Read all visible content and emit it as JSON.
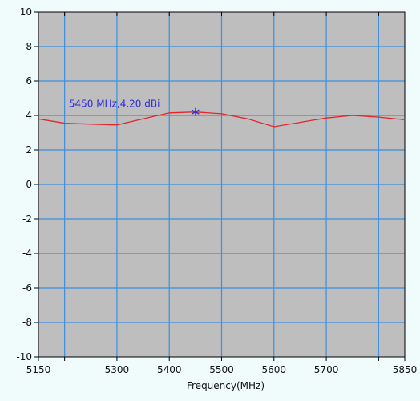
{
  "chart_data": {
    "type": "line",
    "xlabel": "Frequency(MHz)",
    "ylabel": "",
    "xlim": [
      5150,
      5850
    ],
    "ylim": [
      -10,
      10
    ],
    "x_ticks": [
      5150,
      5200,
      5300,
      5400,
      5500,
      5600,
      5700,
      5800,
      5850
    ],
    "x_tick_labels": [
      "5150",
      "",
      "5300",
      "5400",
      "5500",
      "5600",
      "5700",
      "",
      "5850"
    ],
    "y_ticks": [
      -10,
      -8,
      -6,
      -4,
      -2,
      0,
      2,
      4,
      6,
      8,
      10
    ],
    "y_tick_labels": [
      "-10",
      "-8",
      "-6",
      "-4",
      "-2",
      "0",
      "2",
      "4",
      "6",
      "8",
      "10"
    ],
    "grid": true,
    "series": [
      {
        "x": [
          5150,
          5200,
          5250,
          5300,
          5350,
          5400,
          5450,
          5500,
          5550,
          5600,
          5650,
          5700,
          5750,
          5800,
          5850
        ],
        "y": [
          3.8,
          3.55,
          3.5,
          3.45,
          3.8,
          4.15,
          4.2,
          4.1,
          3.8,
          3.35,
          3.6,
          3.85,
          4.0,
          3.9,
          3.75
        ]
      }
    ],
    "marker": {
      "x": 5450,
      "y": 4.2,
      "label": "5450 MHz,4.20 dBi"
    },
    "colors": {
      "background": "#f0fbfb",
      "plot_bg": "#bebebe",
      "grid": "#3d8fdf",
      "line": "#e3262c",
      "marker": "#2c2cd9",
      "axis": "#000000"
    }
  }
}
